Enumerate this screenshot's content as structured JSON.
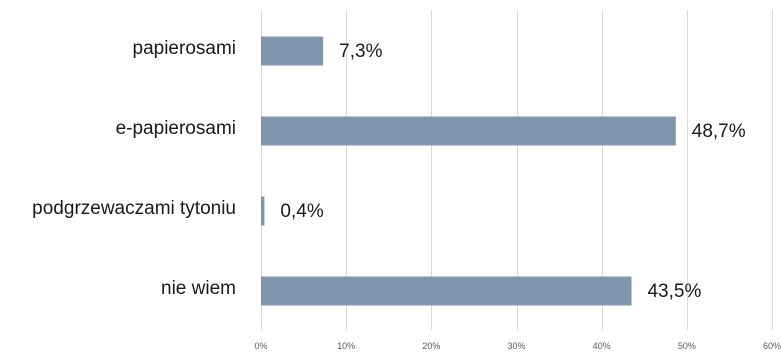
{
  "chart_data": {
    "type": "bar",
    "orientation": "horizontal",
    "categories": [
      "papierosami",
      "e-papierosami",
      "podgrzewaczami tytoniu",
      "nie wiem"
    ],
    "values": [
      7.3,
      48.7,
      0.4,
      43.5
    ],
    "value_labels": [
      "7,3%",
      "48,7%",
      "0,4%",
      "43,5%"
    ],
    "xlim": [
      0,
      60
    ],
    "x_ticks": [
      0,
      10,
      20,
      30,
      40,
      50,
      60
    ],
    "x_tick_labels": [
      "0%",
      "10%",
      "20%",
      "30%",
      "40%",
      "50%",
      "60%"
    ],
    "grid": true,
    "legend": "none",
    "bar_color": "#7f96ae"
  }
}
